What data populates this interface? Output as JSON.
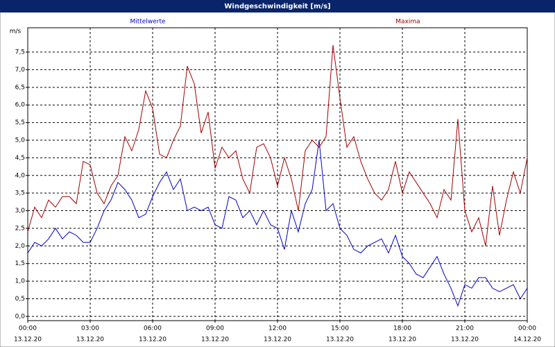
{
  "chart_data": {
    "type": "line",
    "title": "Windgeschwindigkeit [m/s]",
    "ylabel": "m/s",
    "x": [
      0,
      20,
      40,
      60,
      80,
      100,
      120,
      140,
      160,
      180,
      200,
      220,
      240,
      260,
      280,
      300,
      320,
      340,
      360,
      380,
      400,
      420,
      440,
      460,
      480,
      500,
      520,
      540,
      560,
      580,
      600,
      620,
      640,
      660,
      680,
      700,
      720,
      740,
      760,
      780,
      800,
      820,
      840,
      860,
      880,
      900,
      920,
      940,
      960,
      980,
      1000,
      1020,
      1040,
      1060,
      1080,
      1100,
      1120,
      1140,
      1160,
      1180,
      1200,
      1220,
      1240,
      1260,
      1280,
      1300,
      1320,
      1340,
      1360,
      1380,
      1400,
      1420,
      1440
    ],
    "series": [
      {
        "name": "Mittelwerte",
        "color": "#0000c8",
        "values": [
          1.8,
          2.1,
          2.0,
          2.2,
          2.5,
          2.2,
          2.4,
          2.3,
          2.1,
          2.1,
          2.5,
          3.0,
          3.3,
          3.8,
          3.6,
          3.3,
          2.8,
          2.9,
          3.4,
          3.8,
          4.1,
          3.6,
          3.9,
          3.0,
          3.1,
          3.0,
          3.1,
          2.6,
          2.5,
          3.4,
          3.3,
          2.8,
          3.0,
          2.6,
          3.0,
          2.6,
          2.5,
          1.9,
          3.0,
          2.4,
          3.2,
          3.6,
          5.0,
          3.0,
          3.2,
          2.5,
          2.3,
          1.9,
          1.8,
          2.0,
          2.1,
          2.2,
          1.8,
          2.3,
          1.7,
          1.5,
          1.2,
          1.1,
          1.4,
          1.7,
          1.2,
          0.8,
          0.3,
          0.9,
          0.8,
          1.1,
          1.1,
          0.8,
          0.7,
          0.8,
          0.9,
          0.5,
          0.8
        ]
      },
      {
        "name": "Maxima",
        "color": "#a00000",
        "values": [
          2.4,
          3.1,
          2.8,
          3.3,
          3.1,
          3.4,
          3.4,
          3.2,
          4.4,
          4.3,
          3.5,
          3.2,
          3.7,
          4.0,
          5.1,
          4.7,
          5.3,
          6.4,
          5.9,
          4.6,
          4.5,
          5.0,
          5.4,
          7.1,
          6.6,
          5.2,
          5.8,
          4.2,
          4.8,
          4.5,
          4.7,
          3.9,
          3.5,
          4.8,
          4.9,
          4.5,
          3.7,
          4.5,
          3.9,
          3.0,
          4.7,
          5.0,
          4.8,
          5.1,
          7.7,
          6.2,
          4.8,
          5.1,
          4.4,
          3.9,
          3.5,
          3.3,
          3.6,
          4.4,
          3.5,
          4.1,
          3.8,
          3.5,
          3.2,
          2.8,
          3.6,
          3.3,
          5.6,
          3.0,
          2.4,
          2.8,
          2.0,
          3.7,
          2.3,
          3.3,
          4.1,
          3.5,
          4.5
        ]
      }
    ],
    "xlim": [
      0,
      1440
    ],
    "xticks": [
      {
        "value": 0,
        "label": "00:00"
      },
      {
        "value": 180,
        "label": "03:00"
      },
      {
        "value": 360,
        "label": "06:00"
      },
      {
        "value": 540,
        "label": "09:00"
      },
      {
        "value": 720,
        "label": "12:00"
      },
      {
        "value": 900,
        "label": "15:00"
      },
      {
        "value": 1080,
        "label": "18:00"
      },
      {
        "value": 1260,
        "label": "21:00"
      },
      {
        "value": 1440,
        "label": "00:00"
      }
    ],
    "xtick_dates": [
      "13.12.20",
      "13.12.20",
      "13.12.20",
      "13.12.20",
      "13.12.20",
      "13.12.20",
      "13.12.20",
      "13.12.20",
      "14.12.20"
    ],
    "ylim": [
      -0.12,
      8.19
    ],
    "yticks": [
      {
        "value": 0,
        "label": "0,0"
      },
      {
        "value": 0.5,
        "label": "0,5"
      },
      {
        "value": 1,
        "label": "1,0"
      },
      {
        "value": 1.5,
        "label": "1,5"
      },
      {
        "value": 2,
        "label": "2,0"
      },
      {
        "value": 2.5,
        "label": "2,5"
      },
      {
        "value": 3,
        "label": "3,0"
      },
      {
        "value": 3.5,
        "label": "3,5"
      },
      {
        "value": 4,
        "label": "4,0"
      },
      {
        "value": 4.5,
        "label": "4,5"
      },
      {
        "value": 5,
        "label": "5,0"
      },
      {
        "value": 5.5,
        "label": "5,5"
      },
      {
        "value": 6,
        "label": "6,0"
      },
      {
        "value": 6.5,
        "label": "6,5"
      },
      {
        "value": 7,
        "label": "7,0"
      },
      {
        "value": 7.5,
        "label": "7,5"
      }
    ],
    "grid": true
  }
}
